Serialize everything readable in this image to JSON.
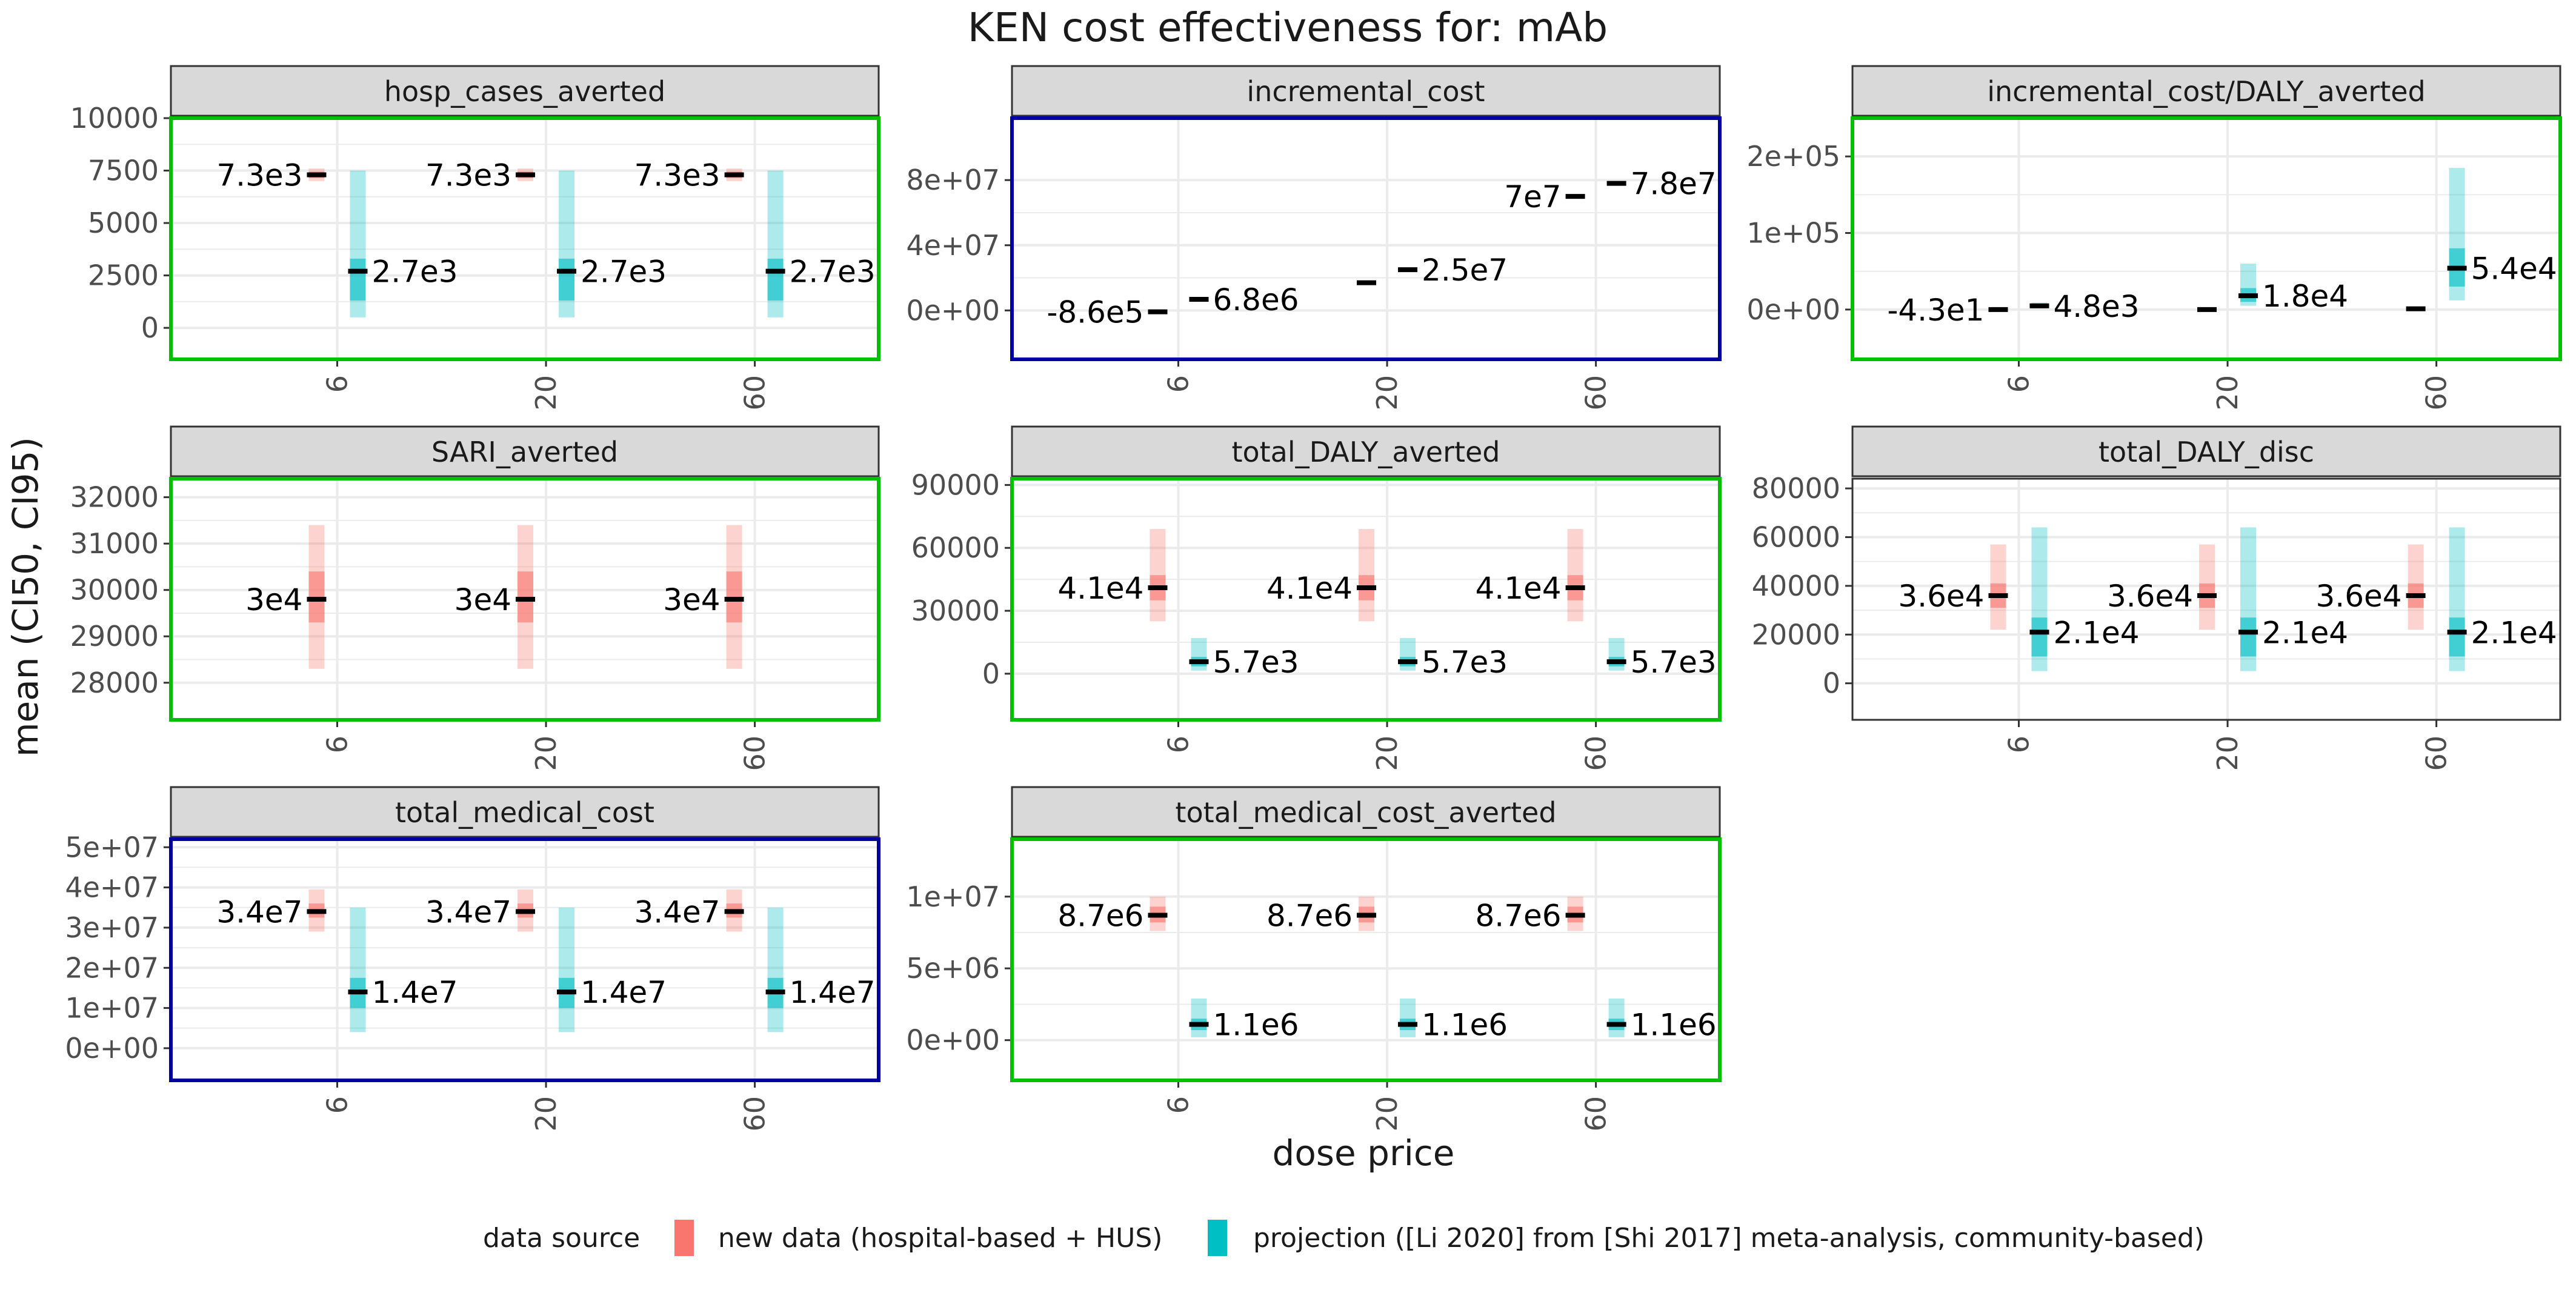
{
  "title": "KEN cost effectiveness for: mAb",
  "y_axis_title": "mean (CI50, CI95)",
  "x_axis_title": "dose price",
  "legend": {
    "title": "data source",
    "items": [
      {
        "label": "new data (hospital-based + HUS)",
        "color": "#f8766d"
      },
      {
        "label": "projection ([Li 2020] from [Shi 2017] meta-analysis, community-based)",
        "color": "#00bfc4"
      }
    ]
  },
  "colors": {
    "new_data": "#f8766d",
    "projection": "#00bfc4",
    "strip_fill": "#d9d9d9",
    "grid": "#ebebeb",
    "border_green": "#00c000",
    "border_blue": "#0000a0",
    "border_default": "#333333",
    "median": "#000000"
  },
  "chart_data": {
    "type": "crossbar",
    "x_categories": [
      "6",
      "20",
      "60"
    ],
    "panels": [
      {
        "name": "hosp_cases_averted",
        "border": "green",
        "ylim": [
          -1500,
          10000
        ],
        "y_ticks": [
          0,
          2500,
          5000,
          7500,
          10000
        ],
        "y_tick_labels": [
          "0",
          "2500",
          "5000",
          "7500",
          "10000"
        ],
        "series": [
          {
            "source": "new data",
            "label_side": "left",
            "points": [
              {
                "median": 7300,
                "ci50": [
                  7150,
                  7450
                ],
                "ci95": [
                  7000,
                  7600
                ],
                "label": "7.3e3"
              },
              {
                "median": 7300,
                "ci50": [
                  7150,
                  7450
                ],
                "ci95": [
                  7000,
                  7600
                ],
                "label": "7.3e3"
              },
              {
                "median": 7300,
                "ci50": [
                  7150,
                  7450
                ],
                "ci95": [
                  7000,
                  7600
                ],
                "label": "7.3e3"
              }
            ]
          },
          {
            "source": "projection",
            "label_side": "right",
            "points": [
              {
                "median": 2700,
                "ci50": [
                  1300,
                  3300
                ],
                "ci95": [
                  500,
                  7500
                ],
                "label": "2.7e3"
              },
              {
                "median": 2700,
                "ci50": [
                  1300,
                  3300
                ],
                "ci95": [
                  500,
                  7500
                ],
                "label": "2.7e3"
              },
              {
                "median": 2700,
                "ci50": [
                  1300,
                  3300
                ],
                "ci95": [
                  500,
                  7500
                ],
                "label": "2.7e3"
              }
            ]
          }
        ]
      },
      {
        "name": "incremental_cost",
        "border": "blue",
        "ylim": [
          -30000000,
          118000000
        ],
        "y_ticks": [
          0,
          40000000,
          80000000
        ],
        "y_tick_labels": [
          "0e+00",
          "4e+07",
          "8e+07"
        ],
        "series": [
          {
            "source": "new data",
            "label_side": "left",
            "points": [
              {
                "median": -860000,
                "ci50": [
                  -860000,
                  -860000
                ],
                "ci95": [
                  -860000,
                  -860000
                ],
                "label": "-8.6e5"
              },
              {
                "median": 17000000,
                "ci50": [
                  17000000,
                  17000000
                ],
                "ci95": [
                  17000000,
                  17000000
                ],
                "label": ""
              },
              {
                "median": 70000000,
                "ci50": [
                  70000000,
                  70000000
                ],
                "ci95": [
                  70000000,
                  70000000
                ],
                "label": "7e7"
              }
            ]
          },
          {
            "source": "projection",
            "label_side": "right",
            "points": [
              {
                "median": 6800000,
                "ci50": [
                  6800000,
                  6800000
                ],
                "ci95": [
                  6800000,
                  6800000
                ],
                "label": "6.8e6"
              },
              {
                "median": 25000000,
                "ci50": [
                  25000000,
                  25000000
                ],
                "ci95": [
                  25000000,
                  25000000
                ],
                "label": "2.5e7"
              },
              {
                "median": 78000000,
                "ci50": [
                  78000000,
                  78000000
                ],
                "ci95": [
                  78000000,
                  78000000
                ],
                "label": "7.8e7"
              }
            ]
          }
        ]
      },
      {
        "name": "incremental_cost/DALY_averted",
        "border": "green",
        "ylim": [
          -65000,
          250000
        ],
        "y_ticks": [
          0,
          100000,
          200000
        ],
        "y_tick_labels": [
          "0e+00",
          "1e+05",
          "2e+05"
        ],
        "series": [
          {
            "source": "new data",
            "label_side": "left",
            "points": [
              {
                "median": -43,
                "ci50": [
                  -43,
                  -43
                ],
                "ci95": [
                  -43,
                  -43
                ],
                "label": "-4.3e1"
              },
              {
                "median": 0,
                "ci50": [
                  0,
                  0
                ],
                "ci95": [
                  0,
                  0
                ],
                "label": ""
              },
              {
                "median": 1000,
                "ci50": [
                  1000,
                  1000
                ],
                "ci95": [
                  1000,
                  1000
                ],
                "label": ""
              }
            ]
          },
          {
            "source": "projection",
            "label_side": "right",
            "points": [
              {
                "median": 4800,
                "ci50": [
                  3000,
                  6000
                ],
                "ci95": [
                  1500,
                  9000
                ],
                "label": "4.8e3"
              },
              {
                "median": 18000,
                "ci50": [
                  10000,
                  28000
                ],
                "ci95": [
                  5000,
                  60000
                ],
                "label": "1.8e4"
              },
              {
                "median": 54000,
                "ci50": [
                  30000,
                  80000
                ],
                "ci95": [
                  12000,
                  185000
                ],
                "label": "5.4e4"
              }
            ]
          }
        ]
      },
      {
        "name": "SARI_averted",
        "border": "green",
        "ylim": [
          27200,
          32400
        ],
        "y_ticks": [
          28000,
          29000,
          30000,
          31000,
          32000
        ],
        "y_tick_labels": [
          "28000",
          "29000",
          "30000",
          "31000",
          "32000"
        ],
        "series": [
          {
            "source": "new data",
            "label_side": "left",
            "points": [
              {
                "median": 29800,
                "ci50": [
                  29300,
                  30400
                ],
                "ci95": [
                  28300,
                  31400
                ],
                "label": "3e4"
              },
              {
                "median": 29800,
                "ci50": [
                  29300,
                  30400
                ],
                "ci95": [
                  28300,
                  31400
                ],
                "label": "3e4"
              },
              {
                "median": 29800,
                "ci50": [
                  29300,
                  30400
                ],
                "ci95": [
                  28300,
                  31400
                ],
                "label": "3e4"
              }
            ]
          }
        ]
      },
      {
        "name": "total_DALY_averted",
        "border": "green",
        "ylim": [
          -22000,
          93000
        ],
        "y_ticks": [
          0,
          30000,
          60000,
          90000
        ],
        "y_tick_labels": [
          "0",
          "30000",
          "60000",
          "90000"
        ],
        "series": [
          {
            "source": "new data",
            "label_side": "left",
            "points": [
              {
                "median": 41000,
                "ci50": [
                  35000,
                  47000
                ],
                "ci95": [
                  25000,
                  69000
                ],
                "label": "4.1e4"
              },
              {
                "median": 41000,
                "ci50": [
                  35000,
                  47000
                ],
                "ci95": [
                  25000,
                  69000
                ],
                "label": "4.1e4"
              },
              {
                "median": 41000,
                "ci50": [
                  35000,
                  47000
                ],
                "ci95": [
                  25000,
                  69000
                ],
                "label": "4.1e4"
              }
            ]
          },
          {
            "source": "projection",
            "label_side": "right",
            "points": [
              {
                "median": 5700,
                "ci50": [
                  3500,
                  8000
                ],
                "ci95": [
                  1500,
                  17000
                ],
                "label": "5.7e3"
              },
              {
                "median": 5700,
                "ci50": [
                  3500,
                  8000
                ],
                "ci95": [
                  1500,
                  17000
                ],
                "label": "5.7e3"
              },
              {
                "median": 5700,
                "ci50": [
                  3500,
                  8000
                ],
                "ci95": [
                  1500,
                  17000
                ],
                "label": "5.7e3"
              }
            ]
          }
        ]
      },
      {
        "name": "total_DALY_disc",
        "border": "default",
        "ylim": [
          -15000,
          84000
        ],
        "y_ticks": [
          0,
          20000,
          40000,
          60000,
          80000
        ],
        "y_tick_labels": [
          "0",
          "20000",
          "40000",
          "60000",
          "80000"
        ],
        "series": [
          {
            "source": "new data",
            "label_side": "left",
            "points": [
              {
                "median": 36000,
                "ci50": [
                  31000,
                  41000
                ],
                "ci95": [
                  22000,
                  57000
                ],
                "label": "3.6e4"
              },
              {
                "median": 36000,
                "ci50": [
                  31000,
                  41000
                ],
                "ci95": [
                  22000,
                  57000
                ],
                "label": "3.6e4"
              },
              {
                "median": 36000,
                "ci50": [
                  31000,
                  41000
                ],
                "ci95": [
                  22000,
                  57000
                ],
                "label": "3.6e4"
              }
            ]
          },
          {
            "source": "projection",
            "label_side": "right",
            "points": [
              {
                "median": 21000,
                "ci50": [
                  11000,
                  27000
                ],
                "ci95": [
                  5000,
                  64000
                ],
                "label": "2.1e4"
              },
              {
                "median": 21000,
                "ci50": [
                  11000,
                  27000
                ],
                "ci95": [
                  5000,
                  64000
                ],
                "label": "2.1e4"
              },
              {
                "median": 21000,
                "ci50": [
                  11000,
                  27000
                ],
                "ci95": [
                  5000,
                  64000
                ],
                "label": "2.1e4"
              }
            ]
          }
        ]
      },
      {
        "name": "total_medical_cost",
        "border": "blue",
        "ylim": [
          -8000000,
          52000000
        ],
        "y_ticks": [
          0,
          10000000,
          20000000,
          30000000,
          40000000,
          50000000
        ],
        "y_tick_labels": [
          "0e+00",
          "1e+07",
          "2e+07",
          "3e+07",
          "4e+07",
          "5e+07"
        ],
        "series": [
          {
            "source": "new data",
            "label_side": "left",
            "points": [
              {
                "median": 34000000,
                "ci50": [
                  32500000,
                  36000000
                ],
                "ci95": [
                  29000000,
                  39500000
                ],
                "label": "3.4e7"
              },
              {
                "median": 34000000,
                "ci50": [
                  32500000,
                  36000000
                ],
                "ci95": [
                  29000000,
                  39500000
                ],
                "label": "3.4e7"
              },
              {
                "median": 34000000,
                "ci50": [
                  32500000,
                  36000000
                ],
                "ci95": [
                  29000000,
                  39500000
                ],
                "label": "3.4e7"
              }
            ]
          },
          {
            "source": "projection",
            "label_side": "right",
            "points": [
              {
                "median": 14000000,
                "ci50": [
                  10000000,
                  17500000
                ],
                "ci95": [
                  4000000,
                  35000000
                ],
                "label": "1.4e7"
              },
              {
                "median": 14000000,
                "ci50": [
                  10000000,
                  17500000
                ],
                "ci95": [
                  4000000,
                  35000000
                ],
                "label": "1.4e7"
              },
              {
                "median": 14000000,
                "ci50": [
                  10000000,
                  17500000
                ],
                "ci95": [
                  4000000,
                  35000000
                ],
                "label": "1.4e7"
              }
            ]
          }
        ]
      },
      {
        "name": "total_medical_cost_averted",
        "border": "green",
        "ylim": [
          -2800000,
          14000000
        ],
        "y_ticks": [
          0,
          5000000,
          10000000
        ],
        "y_tick_labels": [
          "0e+00",
          "5e+06",
          "1e+07"
        ],
        "series": [
          {
            "source": "new data",
            "label_side": "left",
            "points": [
              {
                "median": 8700000,
                "ci50": [
                  8200000,
                  9300000
                ],
                "ci95": [
                  7600000,
                  10000000
                ],
                "label": "8.7e6"
              },
              {
                "median": 8700000,
                "ci50": [
                  8200000,
                  9300000
                ],
                "ci95": [
                  7600000,
                  10000000
                ],
                "label": "8.7e6"
              },
              {
                "median": 8700000,
                "ci50": [
                  8200000,
                  9300000
                ],
                "ci95": [
                  7600000,
                  10000000
                ],
                "label": "8.7e6"
              }
            ]
          },
          {
            "source": "projection",
            "label_side": "right",
            "points": [
              {
                "median": 1100000,
                "ci50": [
                  700000,
                  1500000
                ],
                "ci95": [
                  200000,
                  2900000
                ],
                "label": "1.1e6"
              },
              {
                "median": 1100000,
                "ci50": [
                  700000,
                  1500000
                ],
                "ci95": [
                  200000,
                  2900000
                ],
                "label": "1.1e6"
              },
              {
                "median": 1100000,
                "ci50": [
                  700000,
                  1500000
                ],
                "ci95": [
                  200000,
                  2900000
                ],
                "label": "1.1e6"
              }
            ]
          }
        ]
      }
    ]
  }
}
